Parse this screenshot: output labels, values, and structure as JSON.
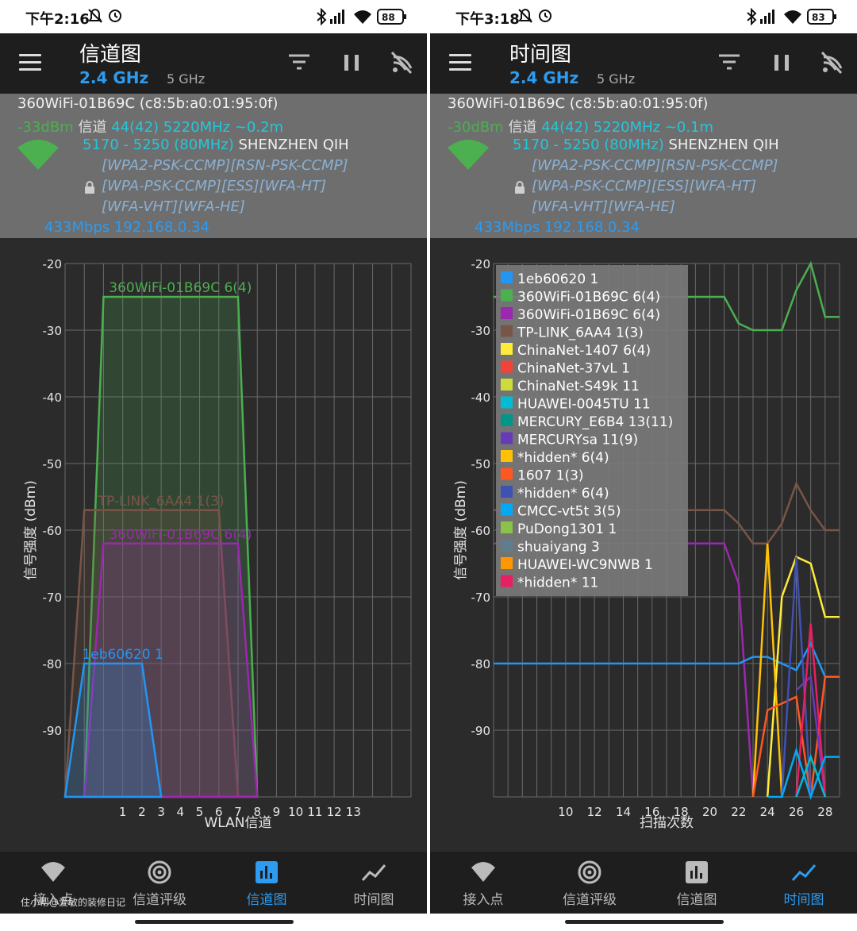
{
  "left": {
    "status": {
      "time": "下午2:16",
      "battery": "88"
    },
    "toolbar": {
      "title": "信道图",
      "band_active": "2.4 GHz",
      "band_other": "5 GHz"
    },
    "info": {
      "name": "360WiFi-01B69C (c8:5b:a0:01:95:0f)",
      "dbm": "-33dBm",
      "channel_label": "信道",
      "channel": "44(42)",
      "freq": "5220MHz",
      "dist": "~0.2m",
      "range": "5170 - 5250 (80MHz)",
      "vendor": "SHENZHEN QIH",
      "sec1": "[WPA2-PSK-CCMP][RSN-PSK-CCMP]",
      "sec2": "[WPA-PSK-CCMP][ESS][WFA-HT]",
      "sec3": "[WFA-VHT][WFA-HE]",
      "rate": "433Mbps 192.168.0.34"
    },
    "chart_data": {
      "type": "area",
      "xlabel": "WLAN信道",
      "ylabel": "信号强度 (dBm)",
      "ylim": [
        -100,
        -20
      ],
      "xlim": [
        -2,
        16
      ],
      "x_ticks": [
        1,
        2,
        3,
        4,
        5,
        6,
        7,
        8,
        9,
        10,
        11,
        12,
        13
      ],
      "y_ticks": [
        -20,
        -30,
        -40,
        -50,
        -60,
        -70,
        -80,
        -90
      ],
      "series": [
        {
          "name": "360WiFi-01B69C 6(4)",
          "color": "#4caf50",
          "center": 4,
          "level": -25,
          "x": [
            -1,
            0,
            7,
            8
          ],
          "y": [
            -100,
            -25,
            -25,
            -100
          ]
        },
        {
          "name": "TP-LINK_6AA4 1(3)",
          "color": "#795548",
          "center": 3,
          "level": -57,
          "x": [
            -2,
            -1,
            6,
            7
          ],
          "y": [
            -100,
            -57,
            -57,
            -100
          ]
        },
        {
          "name": "360WiFi-01B69C 6(4)",
          "color": "#9c27b0",
          "center": 4,
          "level": -62,
          "x": [
            -1,
            0,
            7,
            8
          ],
          "y": [
            -100,
            -62,
            -62,
            -100
          ]
        },
        {
          "name": "1eb60620 1",
          "color": "#2196f3",
          "center": 1,
          "level": -80,
          "x": [
            -2,
            -1,
            2,
            3
          ],
          "y": [
            -100,
            -80,
            -80,
            -100
          ]
        }
      ]
    },
    "nav": [
      "接入点",
      "信道评级",
      "信道图",
      "时间图"
    ],
    "watermark": "住小帮@爱敏的装修日记"
  },
  "right": {
    "status": {
      "time": "下午3:18",
      "battery": "83"
    },
    "toolbar": {
      "title": "时间图",
      "band_active": "2.4 GHz",
      "band_other": "5 GHz"
    },
    "info": {
      "name": "360WiFi-01B69C (c8:5b:a0:01:95:0f)",
      "dbm": "-30dBm",
      "channel_label": "信道",
      "channel": "44(42)",
      "freq": "5220MHz",
      "dist": "~0.1m",
      "range": "5170 - 5250 (80MHz)",
      "vendor": "SHENZHEN QIH",
      "sec1": "[WPA2-PSK-CCMP][RSN-PSK-CCMP]",
      "sec2": "[WPA-PSK-CCMP][ESS][WFA-HT]",
      "sec3": "[WFA-VHT][WFA-HE]",
      "rate": "433Mbps 192.168.0.34"
    },
    "chart_data": {
      "type": "line",
      "xlabel": "扫描次数",
      "ylabel": "信号强度 (dBm)",
      "ylim": [
        -100,
        -20
      ],
      "xlim": [
        5,
        29
      ],
      "x_ticks": [
        10,
        12,
        14,
        16,
        18,
        20,
        22,
        24,
        26,
        28
      ],
      "y_ticks": [
        -20,
        -30,
        -40,
        -50,
        -60,
        -70,
        -80,
        -90
      ],
      "legend": [
        {
          "name": "1eb60620 1",
          "color": "#2196f3"
        },
        {
          "name": "360WiFi-01B69C 6(4)",
          "color": "#4caf50"
        },
        {
          "name": "360WiFi-01B69C 6(4)",
          "color": "#9c27b0"
        },
        {
          "name": "TP-LINK_6AA4 1(3)",
          "color": "#795548"
        },
        {
          "name": "ChinaNet-1407 6(4)",
          "color": "#ffeb3b"
        },
        {
          "name": "ChinaNet-37vL 1",
          "color": "#f44336"
        },
        {
          "name": "ChinaNet-S49k 11",
          "color": "#cddc39"
        },
        {
          "name": "HUAWEI-0045TU 11",
          "color": "#00bcd4"
        },
        {
          "name": "MERCURY_E6B4 13(11)",
          "color": "#009688"
        },
        {
          "name": "MERCURYsa 11(9)",
          "color": "#673ab7"
        },
        {
          "name": "*hidden* 6(4)",
          "color": "#ffc107"
        },
        {
          "name": "1607 1(3)",
          "color": "#ff5722"
        },
        {
          "name": "*hidden* 6(4)",
          "color": "#3f51b5"
        },
        {
          "name": "CMCC-vt5t 3(5)",
          "color": "#03a9f4"
        },
        {
          "name": "PuDong1301 1",
          "color": "#8bc34a"
        },
        {
          "name": "shuaiyang 3",
          "color": "#607d8b"
        },
        {
          "name": "HUAWEI-WC9NWB 1",
          "color": "#ff9800"
        },
        {
          "name": "*hidden* 11",
          "color": "#e91e63"
        }
      ],
      "series": [
        {
          "color": "#4caf50",
          "x": [
            5,
            20,
            21,
            22,
            23,
            24,
            25,
            26,
            27,
            28,
            29
          ],
          "y": [
            -25,
            -25,
            -25,
            -29,
            -30,
            -30,
            -30,
            -24,
            -20,
            -28,
            -28
          ]
        },
        {
          "color": "#795548",
          "x": [
            5,
            21,
            22,
            23,
            24,
            25,
            26,
            27,
            28,
            29
          ],
          "y": [
            -57,
            -57,
            -59,
            -62,
            -62,
            -59,
            -53,
            -57,
            -60,
            -60
          ]
        },
        {
          "color": "#9c27b0",
          "x": [
            5,
            21,
            22,
            23
          ],
          "y": [
            -62,
            -62,
            -68,
            -100
          ]
        },
        {
          "color": "#2196f3",
          "x": [
            5,
            22,
            23,
            24,
            25,
            26,
            27,
            28,
            29
          ],
          "y": [
            -80,
            -80,
            -79,
            -79,
            -80,
            -81,
            -77,
            -82,
            -82
          ]
        },
        {
          "color": "#ffeb3b",
          "x": [
            24,
            25,
            26,
            27,
            28,
            29
          ],
          "y": [
            -100,
            -70,
            -64,
            -65,
            -73,
            -73
          ]
        },
        {
          "color": "#ffc107",
          "x": [
            23,
            24,
            25
          ],
          "y": [
            -100,
            -62,
            -100
          ]
        },
        {
          "color": "#ff5722",
          "x": [
            23,
            24,
            25,
            26,
            27,
            28,
            29
          ],
          "y": [
            -100,
            -87,
            -86,
            -85,
            -100,
            -82,
            -82
          ]
        },
        {
          "color": "#3f51b5",
          "x": [
            25,
            26,
            27
          ],
          "y": [
            -100,
            -64,
            -100
          ]
        },
        {
          "color": "#673ab7",
          "x": [
            26,
            27,
            28
          ],
          "y": [
            -84,
            -82,
            -100
          ]
        },
        {
          "color": "#e91e63",
          "x": [
            26,
            27,
            28
          ],
          "y": [
            -100,
            -74,
            -100
          ]
        },
        {
          "color": "#03a9f4",
          "x": [
            24,
            25,
            26,
            27,
            28,
            29
          ],
          "y": [
            -100,
            -100,
            -93,
            -100,
            -94,
            -94
          ]
        },
        {
          "color": "#00bcd4",
          "x": [
            26,
            27,
            28
          ],
          "y": [
            -100,
            -94,
            -100
          ]
        }
      ]
    },
    "nav": [
      "接入点",
      "信道评级",
      "信道图",
      "时间图"
    ]
  }
}
